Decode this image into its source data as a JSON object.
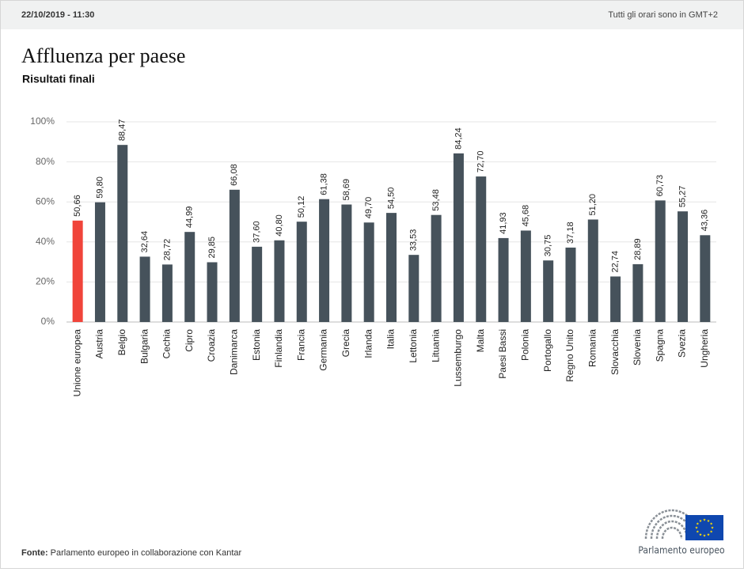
{
  "header": {
    "timestamp": "22/10/2019 - 11:30",
    "timezone_note": "Tutti gli orari sono in GMT+2"
  },
  "chart_data": {
    "type": "bar",
    "title": "Affluenza per paese",
    "subtitle": "Risultati finali",
    "categories": [
      "Unione europea",
      "Austria",
      "Belgio",
      "Bulgaria",
      "Cechia",
      "Cipro",
      "Croazia",
      "Danimarca",
      "Estonia",
      "Finlandia",
      "Francia",
      "Germania",
      "Grecia",
      "Irlanda",
      "Italia",
      "Lettonia",
      "Lituania",
      "Lussemburgo",
      "Malta",
      "Paesi Bassi",
      "Polonia",
      "Portogallo",
      "Regno Unito",
      "Romania",
      "Slovacchia",
      "Slovenia",
      "Spagna",
      "Svezia",
      "Ungheria"
    ],
    "values": [
      50.66,
      59.8,
      88.47,
      32.64,
      28.72,
      44.99,
      29.85,
      66.08,
      37.6,
      40.8,
      50.12,
      61.38,
      58.69,
      49.7,
      54.5,
      33.53,
      53.48,
      84.24,
      72.7,
      41.93,
      45.68,
      30.75,
      37.18,
      51.2,
      22.74,
      28.89,
      60.73,
      55.27,
      43.36
    ],
    "value_labels": [
      "50,66",
      "59,80",
      "88,47",
      "32,64",
      "28,72",
      "44,99",
      "29,85",
      "66,08",
      "37,60",
      "40,80",
      "50,12",
      "61,38",
      "58,69",
      "49,70",
      "54,50",
      "33,53",
      "53,48",
      "84,24",
      "72,70",
      "41,93",
      "45,68",
      "30,75",
      "37,18",
      "51,20",
      "22,74",
      "28,89",
      "60,73",
      "55,27",
      "43,36"
    ],
    "colors": [
      "#f0443a",
      "#46525b",
      "#46525b",
      "#46525b",
      "#46525b",
      "#46525b",
      "#46525b",
      "#46525b",
      "#46525b",
      "#46525b",
      "#46525b",
      "#46525b",
      "#46525b",
      "#46525b",
      "#46525b",
      "#46525b",
      "#46525b",
      "#46525b",
      "#46525b",
      "#46525b",
      "#46525b",
      "#46525b",
      "#46525b",
      "#46525b",
      "#46525b",
      "#46525b",
      "#46525b",
      "#46525b",
      "#46525b"
    ],
    "ylim": [
      0,
      100
    ],
    "yticks": [
      {
        "value": 0,
        "label": "0%"
      },
      {
        "value": 20,
        "label": "20%"
      },
      {
        "value": 40,
        "label": "40%"
      },
      {
        "value": 60,
        "label": "60%"
      },
      {
        "value": 80,
        "label": "80%"
      },
      {
        "value": 100,
        "label": "100%"
      }
    ],
    "grid": true
  },
  "footer": {
    "source_label": "Fonte:",
    "source": "Parlamento europeo in collaborazione con Kantar"
  },
  "logo": {
    "text": "Parlamento europeo"
  }
}
